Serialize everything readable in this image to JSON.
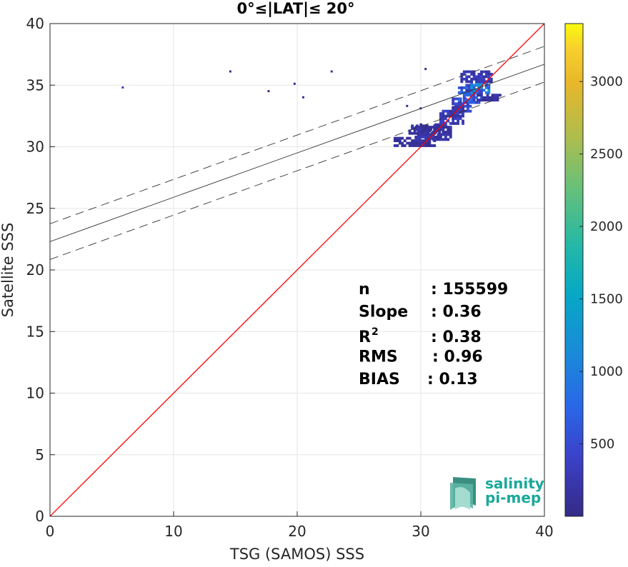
{
  "chart_data": {
    "type": "heatmap",
    "title": "0°≤|LAT|≤ 20°",
    "xlabel": "TSG (SAMOS) SSS",
    "ylabel": "Satellite SSS",
    "xlim": [
      0,
      40
    ],
    "ylim": [
      0,
      40
    ],
    "xticks": [
      "0",
      "10",
      "20",
      "30",
      "40"
    ],
    "yticks": [
      "0",
      "5",
      "10",
      "15",
      "20",
      "25",
      "30",
      "35",
      "40"
    ],
    "grid": true,
    "colorbar": {
      "min": 0,
      "max": 3400,
      "ticks": [
        "500",
        "1000",
        "1500",
        "2000",
        "2500",
        "3000"
      ],
      "tick_values": [
        500,
        1000,
        1500,
        2000,
        2500,
        3000
      ],
      "colormap": "parula"
    },
    "identity_line": {
      "color": "#ff0000"
    },
    "fit_line": {
      "slope": 0.36,
      "intercept": 22.3
    },
    "fit_band_offset": 1.45,
    "stats": [
      {
        "label": "n",
        "value": ": 155599"
      },
      {
        "label": "Slope",
        "value": ": 0.36"
      },
      {
        "label": "R",
        "sup": "2",
        "value": ": 0.38"
      },
      {
        "label": "RMS",
        "value": ": 0.96"
      },
      {
        "label": "BIAS",
        "value": ": 0.13"
      }
    ],
    "density_clusters": [
      {
        "x": [
          27.8,
          31.0
        ],
        "y": [
          30.0,
          30.6
        ],
        "count": 150
      },
      {
        "x": [
          29.5,
          32.5
        ],
        "y": [
          30.5,
          31.8
        ],
        "count": 250
      },
      {
        "x": [
          29.0,
          31.5
        ],
        "y": [
          31.0,
          31.6
        ],
        "count": 150
      },
      {
        "x": [
          31.5,
          33.5
        ],
        "y": [
          31.8,
          33.0
        ],
        "count": 350
      },
      {
        "x": [
          32.5,
          34.0
        ],
        "y": [
          32.8,
          34.0
        ],
        "count": 500
      },
      {
        "x": [
          33.0,
          35.0
        ],
        "y": [
          33.5,
          35.0
        ],
        "count": 700
      },
      {
        "x": [
          34.0,
          35.5
        ],
        "y": [
          34.3,
          35.3
        ],
        "count": 1100
      },
      {
        "x": [
          33.2,
          35.8
        ],
        "y": [
          35.2,
          36.2
        ],
        "count": 350
      },
      {
        "x": [
          34.5,
          36.5
        ],
        "y": [
          33.7,
          34.2
        ],
        "count": 200
      },
      {
        "x": [
          32.5,
          33.5
        ],
        "y": [
          32.7,
          33.3
        ],
        "count": 250
      }
    ],
    "scattered_points": [
      {
        "x": 5.8,
        "y": 34.7,
        "count": 300
      },
      {
        "x": 14.5,
        "y": 36.0,
        "count": 60
      },
      {
        "x": 17.6,
        "y": 34.4,
        "count": 60
      },
      {
        "x": 19.7,
        "y": 35.0,
        "count": 60
      },
      {
        "x": 20.4,
        "y": 33.9,
        "count": 60
      },
      {
        "x": 22.7,
        "y": 36.0,
        "count": 60
      },
      {
        "x": 30.3,
        "y": 36.2,
        "count": 60
      },
      {
        "x": 28.8,
        "y": 33.2,
        "count": 80
      },
      {
        "x": 29.9,
        "y": 33.0,
        "count": 80
      }
    ]
  },
  "logo": {
    "line1": "salinity",
    "line2": "pi-mep"
  }
}
